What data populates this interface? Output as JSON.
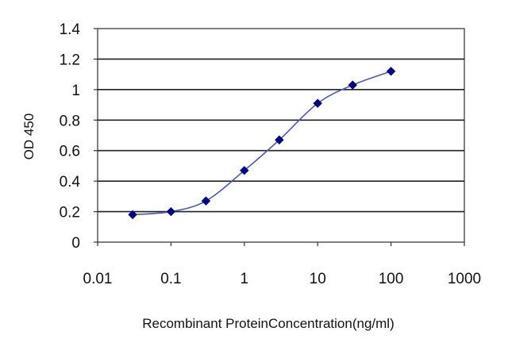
{
  "chart_data": {
    "type": "scatter",
    "xlabel": "Recombinant ProteinConcentration(ng/ml)",
    "ylabel": "OD 450",
    "x_scale": "log",
    "xlim": [
      0.01,
      1000
    ],
    "ylim": [
      0,
      1.4
    ],
    "x_ticks": [
      "0.01",
      "0.1",
      "1",
      "10",
      "100",
      "1000"
    ],
    "y_ticks": [
      "0",
      "0.2",
      "0.4",
      "0.6",
      "0.8",
      "1",
      "1.2",
      "1.4"
    ],
    "grid": "horizontal",
    "legend": "none",
    "series": [
      {
        "x": [
          0.03,
          0.1,
          0.3,
          1,
          3,
          10,
          30,
          100
        ],
        "y": [
          0.18,
          0.2,
          0.27,
          0.47,
          0.67,
          0.91,
          1.03,
          1.12
        ],
        "color": "#00008b",
        "line_color": "#4a58b8",
        "marker": "diamond",
        "connected": true
      }
    ]
  }
}
